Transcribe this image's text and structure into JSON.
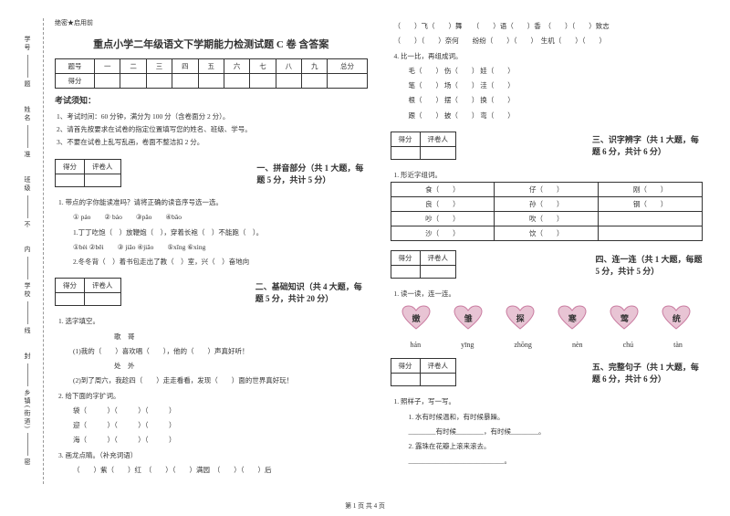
{
  "seal": "绝密★启用前",
  "title": "重点小学二年级语文下学期能力检测试题 C 卷 含答案",
  "side_labels": [
    "学号",
    "姓名",
    "班级",
    "学校",
    "乡镇(街道)"
  ],
  "side_hints": [
    "题",
    "准",
    "不",
    "内",
    "线",
    "封",
    "密"
  ],
  "score_table": {
    "header": [
      "题号",
      "一",
      "二",
      "三",
      "四",
      "五",
      "六",
      "七",
      "八",
      "九",
      "总分"
    ],
    "row_label": "得分"
  },
  "notice_title": "考试须知：",
  "notices": [
    "1、考试时间：60 分钟，满分为 100 分（含卷面分 2 分）。",
    "2、请首先按要求在试卷的指定位置填写您的姓名、班级、学号。",
    "3、不要在试卷上乱写乱画，卷面不整洁扣 2 分。"
  ],
  "scorebox": {
    "c1": "得分",
    "c2": "评卷人"
  },
  "sec1": {
    "title": "一、拼音部分（共 1 大题，每题 5 分，共计 5 分）",
    "q1": "1. 带点的字你能读准吗？请将正确的读音序号选一选。",
    "opts": "① páo　　② báo　　③pǎo　　④bǎo",
    "line1": "1.丁丁吃饱（　）放鞭炮（　），穿着长袍（　）不能跑（　）。",
    "opts2": "①bèi ②bēi　　③ jiāo ④jiāo　　⑤xīng ⑥xìng",
    "line2": "2.冬冬背（　）着书包走出了教（　）室，兴（　）奋地向"
  },
  "sec2": {
    "title": "二、基础知识（共 4 大题，每题 5 分，共计 20 分）",
    "q1": "1. 选字填空。",
    "g1": "　　　　　　歌　哥",
    "l1": "(1)我的（　　）喜欢唱（　　），他的（　　）声真好听！",
    "g2": "　　　　　　处　外",
    "l2": "(2)到了周六，我趁四（　　）走走看看，发现（　　）面的世界真好玩！",
    "q2": "2. 给下面的字扩词。",
    "w1": "袋（　　　）（　　　）（　　　）",
    "w2": "迎（　　　）（　　　）（　　　）",
    "w3": "海（　　　）（　　　）（　　　）",
    "q3": "3. 画龙点睛。（补充词语）",
    "w4": "（　　）紫（　　）红　（　　）（　　）满园　（　　）（　　）后"
  },
  "right_top": {
    "l1": "（　　）飞（　　）舞　　（　　）语（　　）香　（　　）（　　）致志",
    "l2": "（　　）（　　）奈何　　纷纷（　　）（　　）　生机（　　）（　　）",
    "q4": "4. 比一比，再组成词。",
    "pairs": [
      "毛（　　） 伤（　　） 娃（　　）",
      "笔（　　） 场（　　） 洼（　　）",
      "根（　　） 摆（　　） 换（　　）",
      "跟（　　） 披（　　） 弯（　　）"
    ]
  },
  "sec3": {
    "title": "三、识字辨字（共 1 大题，每题 6 分，共计 6 分）",
    "q1": "1. 形近字组词。",
    "rows": [
      [
        "食（　　）",
        "仔（　　）",
        "刚（　　）"
      ],
      [
        "良（　　）",
        "孙（　　）",
        "钢（　　）"
      ],
      [
        "吵（　　）",
        "吹（　　）",
        ""
      ],
      [
        "沙（　　）",
        "饮（　　）",
        ""
      ]
    ]
  },
  "sec4": {
    "title": "四、连一连（共 1 大题，每题 5 分，共计 5 分）",
    "q1": "1. 读一读，连一连。",
    "hearts": [
      "嫩",
      "雏",
      "探",
      "寒",
      "莺",
      "统"
    ],
    "pinyin": [
      "hán",
      "yīng",
      "zhōng",
      "nèn",
      "chú",
      "tàn"
    ]
  },
  "sec5": {
    "title": "五、完整句子（共 1 大题，每题 6 分，共计 6 分）",
    "q1": "1. 照样子，写一写。",
    "l1": "1. 水有时候温和，有时候暴躁。",
    "l2": "________有时候________，有时候________。",
    "l3": "2. 露珠在花瓣上滚来滚去。",
    "l4": "____________________________。"
  },
  "page_num": "第 1 页 共 4 页",
  "heart_fill": "#e8c4d4",
  "heart_stroke": "#c97ba0"
}
